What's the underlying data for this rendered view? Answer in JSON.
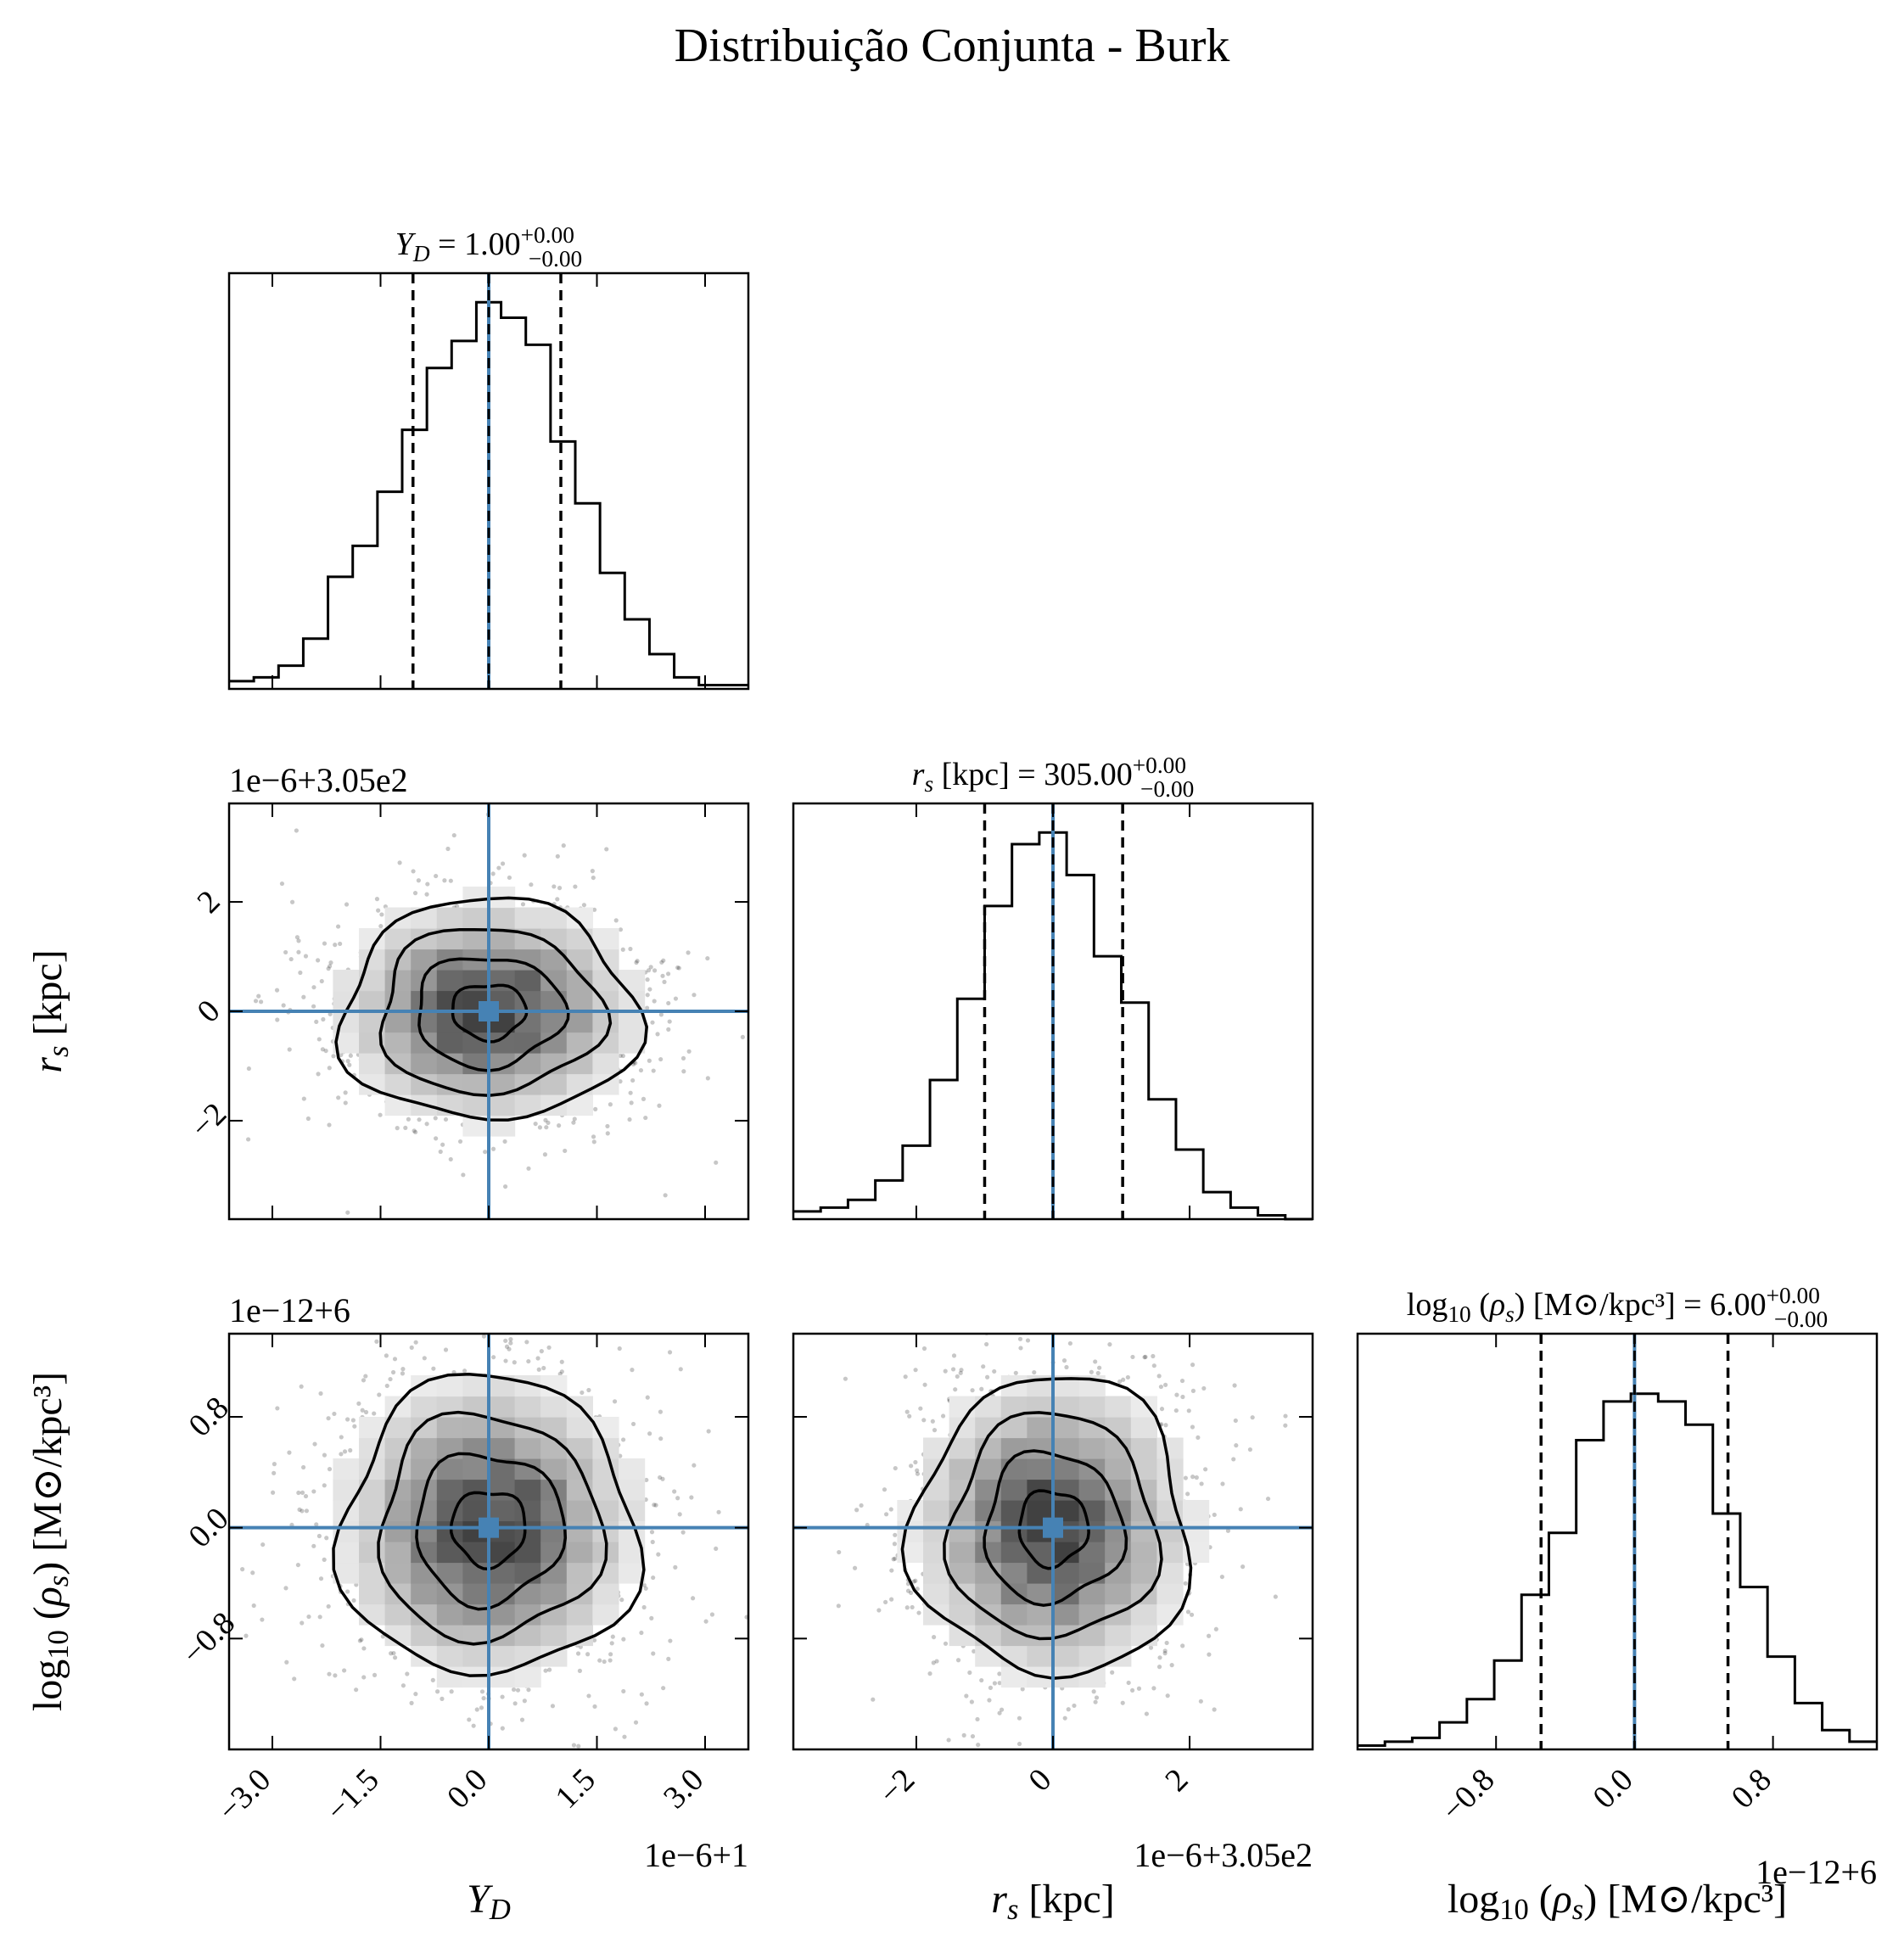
{
  "title": "Distribuição Conjunta - Burk",
  "accent_color": "#4682b4",
  "chart_data": {
    "type": "corner",
    "parameters": [
      {
        "label_html": "<tspan font-style='italic'>Y</tspan><tspan font-style='italic' font-size='0.72em' dy='8'>D</tspan>",
        "label_text": "Y_D",
        "offset_label": "1e−6+1",
        "range": [
          -3.6,
          3.6
        ],
        "ticks": [
          -3.0,
          -1.5,
          0.0,
          1.5,
          3.0
        ],
        "tick_labels": [
          "−3.0",
          "−1.5",
          "0.0",
          "1.5",
          "3.0"
        ],
        "median": 0.0,
        "q16": -1.05,
        "q84": 1.0,
        "title_prefix_html": "<tspan font-style='italic'>Y</tspan><tspan font-style='italic' font-size='0.72em' dy='8'>D</tspan><tspan dy='-8'> = 1.00</tspan>",
        "title_prefix_text": "Y_D = 1.00",
        "title_sup": "+0.00",
        "title_sub": "−0.00",
        "histogram": [
          0.02,
          0.03,
          0.06,
          0.13,
          0.29,
          0.37,
          0.51,
          0.67,
          0.83,
          0.9,
          1.0,
          0.96,
          0.89,
          0.64,
          0.48,
          0.3,
          0.18,
          0.09,
          0.03,
          0.01,
          0.01
        ]
      },
      {
        "label_html": "<tspan font-style='italic'>r</tspan><tspan font-style='italic' font-size='0.72em' dy='8'>s</tspan><tspan dy='-8'> [kpc]</tspan>",
        "label_text": "r_s [kpc]",
        "offset_label": "1e−6+3.05e2",
        "range": [
          -3.8,
          3.8
        ],
        "ticks": [
          -2,
          0,
          2
        ],
        "tick_labels": [
          "−2",
          "0",
          "2"
        ],
        "median": 0.0,
        "q16": -1.0,
        "q84": 1.02,
        "title_prefix_html": "<tspan font-style='italic'>r</tspan><tspan font-style='italic' font-size='0.72em' dy='8'>s</tspan><tspan dy='-8'> [kpc] = 305.00</tspan>",
        "title_prefix_text": "r_s [kpc] = 305.00",
        "title_sup": "+0.00",
        "title_sub": "−0.00",
        "histogram": [
          0.02,
          0.03,
          0.05,
          0.1,
          0.19,
          0.36,
          0.57,
          0.81,
          0.97,
          1.0,
          0.89,
          0.68,
          0.56,
          0.31,
          0.18,
          0.07,
          0.03,
          0.01,
          0.0
        ]
      },
      {
        "label_html": "<tspan>log</tspan><tspan font-size='0.72em' dy='8'>10</tspan><tspan dy='-8'> (</tspan><tspan font-style='italic'>ρ</tspan><tspan font-style='italic' font-size='0.72em' dy='8'>s</tspan><tspan dy='-8'>) [M⊙/kpc³]</tspan>",
        "label_text": "log10(ρ_s) [M⊙/kpc³]",
        "offset_label": "1e−12+6",
        "range": [
          -1.6,
          1.4
        ],
        "ticks": [
          -0.8,
          0.0,
          0.8
        ],
        "tick_labels": [
          "−0.8",
          "0.0",
          "0.8"
        ],
        "median": 0.0,
        "q16": -0.54,
        "q84": 0.54,
        "title_prefix_html": "<tspan>log</tspan><tspan font-size='0.72em' dy='8'>10</tspan><tspan dy='-8'> (</tspan><tspan font-style='italic'>ρ</tspan><tspan font-style='italic' font-size='0.72em' dy='8'>s</tspan><tspan dy='-8'>) [M⊙/kpc³] = 6.00</tspan>",
        "title_prefix_text": "log10(ρ_s) [M⊙/kpc³] = 6.00",
        "title_sup": "+0.00",
        "title_sub": "−0.00",
        "histogram": [
          0.01,
          0.02,
          0.03,
          0.07,
          0.13,
          0.23,
          0.4,
          0.56,
          0.8,
          0.9,
          0.92,
          0.9,
          0.84,
          0.61,
          0.42,
          0.24,
          0.12,
          0.05,
          0.02
        ]
      }
    ],
    "truths": [
      0.0,
      0.0,
      0.0
    ],
    "contour_levels_sigma": [
      0.5,
      1.0,
      1.5,
      2.0
    ],
    "grid": false,
    "legend": "none"
  }
}
